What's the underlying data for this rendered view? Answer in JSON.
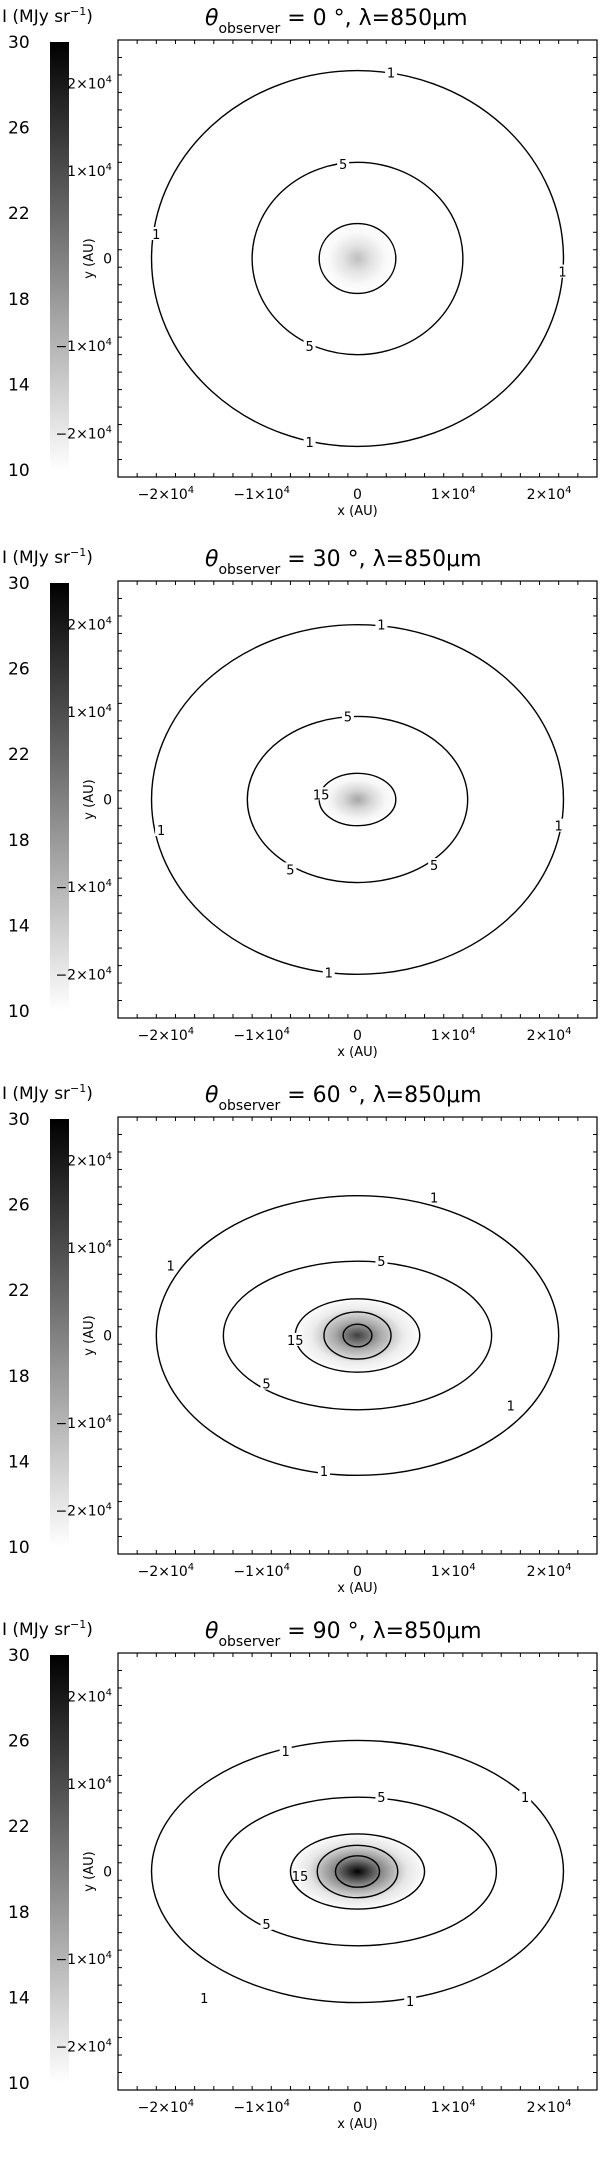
{
  "figure": {
    "panels": [
      {
        "observer_angle": "0",
        "wavelength": "850"
      },
      {
        "observer_angle": "30",
        "wavelength": "850"
      },
      {
        "observer_angle": "60",
        "wavelength": "850"
      },
      {
        "observer_angle": "90",
        "wavelength": "850"
      }
    ],
    "title_parts": {
      "theta": "θ",
      "subscript": "observer",
      "equals": "=",
      "degree": "°,",
      "lambda_prefix": "λ=",
      "micron_unit": "μm"
    },
    "colorbar": {
      "label": "I (MJy sr",
      "label_sup": "−1",
      "label_close": ")",
      "ticks": [
        "30",
        "26",
        "22",
        "18",
        "14",
        "10"
      ],
      "range": [
        10,
        30
      ]
    },
    "axes": {
      "xlabel": "x (AU)",
      "ylabel": "y (AU)",
      "tick_labels": [
        {
          "value": -20000,
          "text": "−2×10",
          "exp": "4"
        },
        {
          "value": -10000,
          "text": "−1×10",
          "exp": "4"
        },
        {
          "value": 0,
          "text": "0",
          "exp": ""
        },
        {
          "value": 10000,
          "text": "1×10",
          "exp": "4"
        },
        {
          "value": 20000,
          "text": "2×10",
          "exp": "4"
        }
      ],
      "range": [
        -25000,
        25000
      ]
    },
    "colors": {
      "line": "#000000",
      "background": "#ffffff"
    }
  },
  "chart_data": [
    {
      "type": "heatmap",
      "title": "θobserver = 0 °, λ=850μm",
      "xlabel": "x (AU)",
      "ylabel": "y (AU)",
      "xlim": [
        -25000,
        25000
      ],
      "ylim": [
        -25000,
        25000
      ],
      "colorbar_range": [
        10,
        30
      ],
      "peak_intensity": 15,
      "contours": [
        {
          "level": 1,
          "rx": 21500,
          "ry": 21500
        },
        {
          "level": 5,
          "rx": 11000,
          "ry": 11000
        },
        {
          "level": 15,
          "rx": 4000,
          "ry": 4000
        }
      ],
      "contour_labels": [
        {
          "level": "1",
          "x": 3500,
          "y": 21300
        },
        {
          "level": "5",
          "x": -1500,
          "y": 10800
        },
        {
          "level": "1",
          "x": -21000,
          "y": 2800
        },
        {
          "level": "1",
          "x": 21400,
          "y": -1500
        },
        {
          "level": "5",
          "x": -5000,
          "y": -10000
        },
        {
          "level": "1",
          "x": -5000,
          "y": -21000
        }
      ]
    },
    {
      "type": "heatmap",
      "title": "θobserver = 30 °, λ=850μm",
      "xlabel": "x (AU)",
      "ylabel": "y (AU)",
      "xlim": [
        -25000,
        25000
      ],
      "ylim": [
        -25000,
        25000
      ],
      "colorbar_range": [
        10,
        30
      ],
      "peak_intensity": 17,
      "contours": [
        {
          "level": 1,
          "rx": 21500,
          "ry": 20000
        },
        {
          "level": 5,
          "rx": 11500,
          "ry": 9500
        },
        {
          "level": 15,
          "rx": 4000,
          "ry": 3000
        }
      ],
      "contour_labels": [
        {
          "level": "1",
          "x": 2500,
          "y": 20000
        },
        {
          "level": "5",
          "x": -1000,
          "y": 9500
        },
        {
          "level": "1",
          "x": -20500,
          "y": -3500
        },
        {
          "level": "15",
          "x": -3800,
          "y": 600
        },
        {
          "level": "1",
          "x": 21000,
          "y": -3000
        },
        {
          "level": "5",
          "x": -7000,
          "y": -8000
        },
        {
          "level": "5",
          "x": 8000,
          "y": -7500
        },
        {
          "level": "1",
          "x": -3000,
          "y": -19800
        }
      ]
    },
    {
      "type": "heatmap",
      "title": "θobserver = 60 °, λ=850μm",
      "xlabel": "x (AU)",
      "ylabel": "y (AU)",
      "xlim": [
        -25000,
        25000
      ],
      "ylim": [
        -25000,
        25000
      ],
      "colorbar_range": [
        10,
        30
      ],
      "peak_intensity": 25,
      "contours": [
        {
          "level": 1,
          "rx": 21000,
          "ry": 16000
        },
        {
          "level": 5,
          "rx": 14000,
          "ry": 8500
        },
        {
          "level": 15,
          "rx": 6500,
          "ry": 4200
        },
        {
          "level": 20,
          "rx": 3500,
          "ry": 2700
        },
        {
          "level": 25,
          "rx": 1500,
          "ry": 1300
        }
      ],
      "contour_labels": [
        {
          "level": "1",
          "x": 8000,
          "y": 15800
        },
        {
          "level": "5",
          "x": 2500,
          "y": 8500
        },
        {
          "level": "1",
          "x": -19500,
          "y": 8000
        },
        {
          "level": "15",
          "x": -6500,
          "y": -500
        },
        {
          "level": "5",
          "x": -9500,
          "y": -5500
        },
        {
          "level": "1",
          "x": 16000,
          "y": -8000
        },
        {
          "level": "1",
          "x": -3500,
          "y": -15500
        }
      ]
    },
    {
      "type": "heatmap",
      "title": "θobserver = 90 °, λ=850μm",
      "xlabel": "x (AU)",
      "ylabel": "y (AU)",
      "xlim": [
        -25000,
        25000
      ],
      "ylim": [
        -25000,
        25000
      ],
      "colorbar_range": [
        10,
        30
      ],
      "peak_intensity": 30,
      "contours": [
        {
          "level": 1,
          "rx": 21500,
          "ry": 15000
        },
        {
          "level": 5,
          "rx": 14500,
          "ry": 8500
        },
        {
          "level": 15,
          "rx": 7000,
          "ry": 4300
        },
        {
          "level": 20,
          "rx": 4200,
          "ry": 3000
        },
        {
          "level": 25,
          "rx": 2300,
          "ry": 1800
        }
      ],
      "contour_labels": [
        {
          "level": "1",
          "x": -7500,
          "y": 13800
        },
        {
          "level": "5",
          "x": 2500,
          "y": 8500
        },
        {
          "level": "1",
          "x": 17500,
          "y": 8500
        },
        {
          "level": "15",
          "x": -6000,
          "y": -500
        },
        {
          "level": "5",
          "x": -9500,
          "y": -6000
        },
        {
          "level": "1",
          "x": -16000,
          "y": -14500
        },
        {
          "level": "1",
          "x": 5500,
          "y": -14800
        }
      ]
    }
  ]
}
